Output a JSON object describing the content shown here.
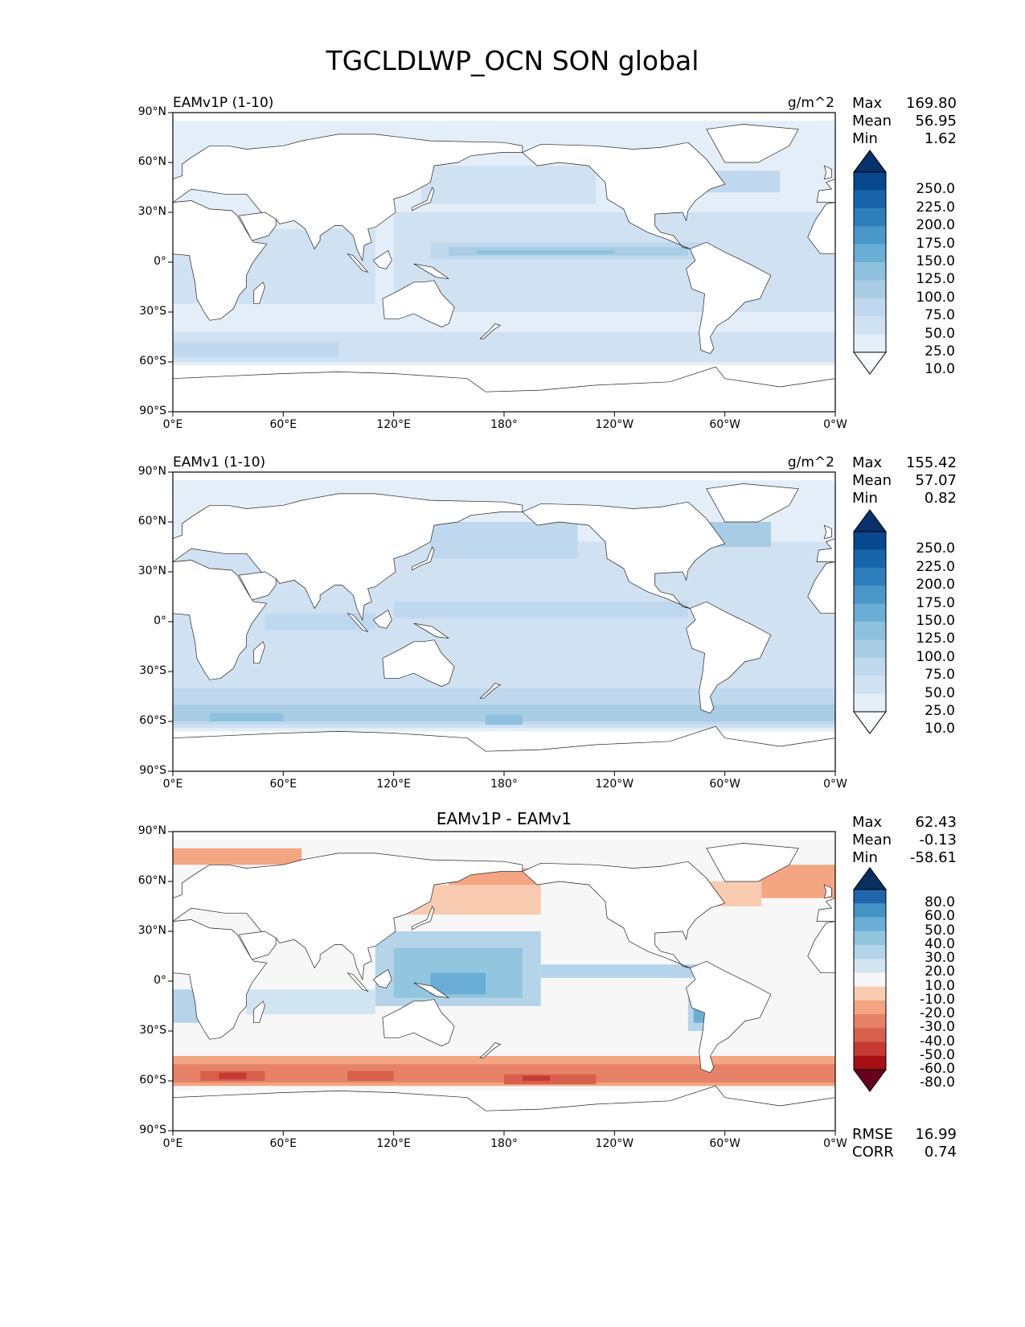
{
  "title": "TGCLDLWP_OCN SON global",
  "chart_data": [
    {
      "type": "heatmap",
      "panel_label": "EAMv1P (1-10)",
      "units": "g/m^2",
      "stats": {
        "max_label": "Max",
        "max": "169.80",
        "mean_label": "Mean",
        "mean": "56.95",
        "min_label": "Min",
        "min": "1.62"
      },
      "yticks": [
        "90°N",
        "60°N",
        "30°N",
        "0°",
        "30°S",
        "60°S",
        "90°S"
      ],
      "xticks": [
        "0°E",
        "60°E",
        "120°E",
        "180°",
        "120°W",
        "60°W",
        "0°W"
      ],
      "xlim": [
        0,
        360
      ],
      "ylim": [
        -90,
        90
      ],
      "colorbar_levels": [
        "250.0",
        "225.0",
        "200.0",
        "175.0",
        "150.0",
        "125.0",
        "100.0",
        "75.0",
        "50.0",
        "25.0",
        "10.0"
      ],
      "colormap": "Blues",
      "colorbar_colors": [
        "#f7fbff",
        "#e3eef9",
        "#d0e1f2",
        "#c0d8ed",
        "#a7cce4",
        "#8dc1dd",
        "#6aaed6",
        "#4a98c9",
        "#2e7ebc",
        "#1764ab",
        "#08488e",
        "#08306b"
      ]
    },
    {
      "type": "heatmap",
      "panel_label": "EAMv1 (1-10)",
      "units": "g/m^2",
      "stats": {
        "max_label": "Max",
        "max": "155.42",
        "mean_label": "Mean",
        "mean": "57.07",
        "min_label": "Min",
        "min": "0.82"
      },
      "yticks": [
        "90°N",
        "60°N",
        "30°N",
        "0°",
        "30°S",
        "60°S",
        "90°S"
      ],
      "xticks": [
        "0°E",
        "60°E",
        "120°E",
        "180°",
        "120°W",
        "60°W",
        "0°W"
      ],
      "xlim": [
        0,
        360
      ],
      "ylim": [
        -90,
        90
      ],
      "colorbar_levels": [
        "250.0",
        "225.0",
        "200.0",
        "175.0",
        "150.0",
        "125.0",
        "100.0",
        "75.0",
        "50.0",
        "25.0",
        "10.0"
      ],
      "colormap": "Blues",
      "colorbar_colors": [
        "#f7fbff",
        "#e3eef9",
        "#d0e1f2",
        "#c0d8ed",
        "#a7cce4",
        "#8dc1dd",
        "#6aaed6",
        "#4a98c9",
        "#2e7ebc",
        "#1764ab",
        "#08488e",
        "#08306b"
      ]
    },
    {
      "type": "heatmap",
      "panel_label": "EAMv1P - EAMv1",
      "units": "",
      "stats": {
        "max_label": "Max",
        "max": "62.43",
        "mean_label": "Mean",
        "mean": "-0.13",
        "min_label": "Min",
        "min": "-58.61"
      },
      "extra_stats": {
        "rmse_label": "RMSE",
        "rmse": "16.99",
        "corr_label": "CORR",
        "corr": "0.74"
      },
      "yticks": [
        "90°N",
        "60°N",
        "30°N",
        "0°",
        "30°S",
        "60°S",
        "90°S"
      ],
      "xticks": [
        "0°E",
        "60°E",
        "120°E",
        "180°",
        "120°W",
        "60°W",
        "0°W"
      ],
      "xlim": [
        0,
        360
      ],
      "ylim": [
        -90,
        90
      ],
      "colorbar_levels": [
        "80.0",
        "60.0",
        "50.0",
        "40.0",
        "30.0",
        "20.0",
        "10.0",
        "-10.0",
        "-20.0",
        "-30.0",
        "-40.0",
        "-50.0",
        "-60.0",
        "-80.0"
      ],
      "colormap": "RdBu",
      "colorbar_colors": [
        "#67001f",
        "#a50f15",
        "#c53a32",
        "#d6604d",
        "#e58268",
        "#f4a582",
        "#f9cbb1",
        "#f7f7f7",
        "#d1e5f0",
        "#b5d4e9",
        "#92c5de",
        "#6aaed6",
        "#4393c3",
        "#2166ac",
        "#053061"
      ]
    }
  ]
}
